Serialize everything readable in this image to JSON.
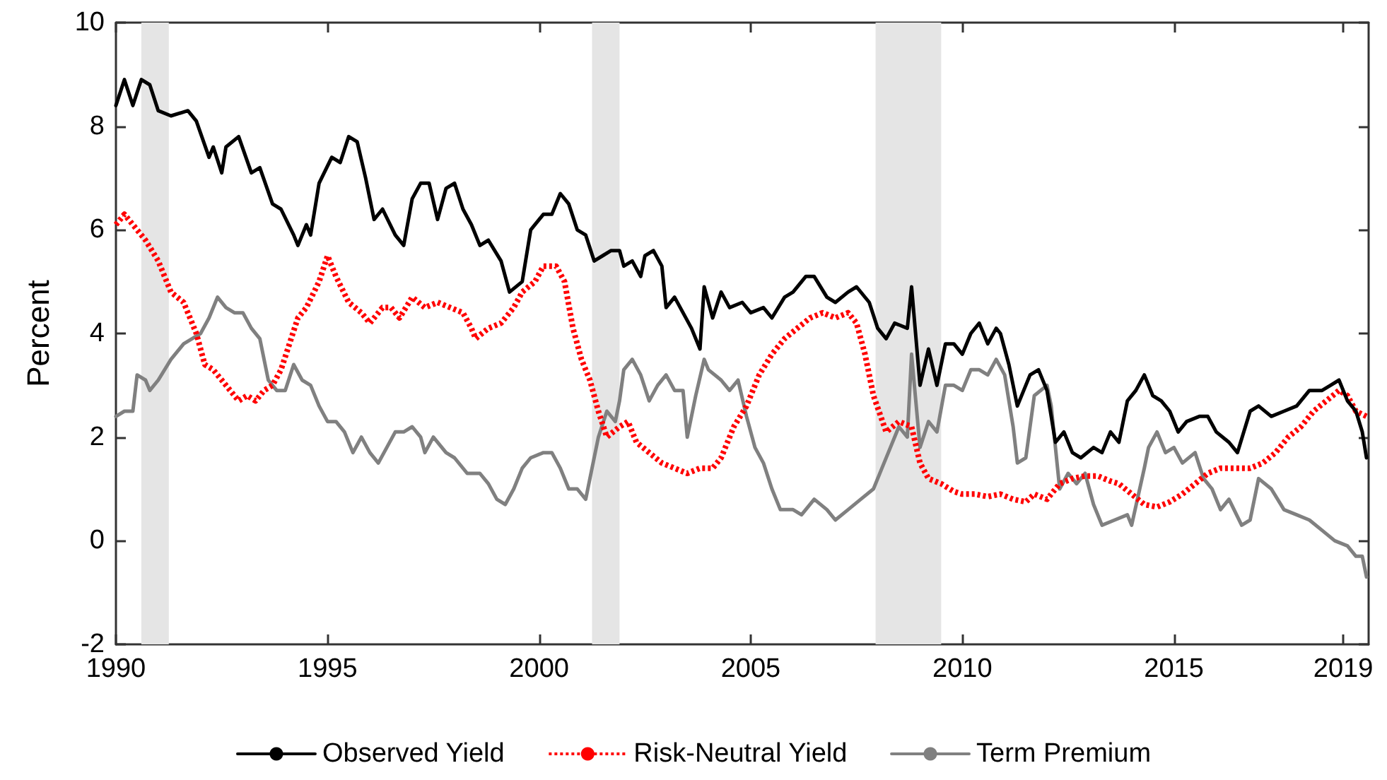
{
  "chart_data": {
    "type": "line",
    "ylabel": "Percent",
    "xlim": [
      1990,
      2019.6
    ],
    "xticks": [
      1990,
      1995,
      2000,
      2005,
      2010,
      2015,
      2019
    ],
    "ylim": [
      -2,
      10
    ],
    "yticks": [
      -2,
      0,
      2,
      4,
      6,
      8,
      10
    ],
    "grid": false,
    "legend": "bottom",
    "marker": "none",
    "bands": [
      {
        "axis": "x",
        "from": 1990.6,
        "to": 1991.25,
        "color": "#e5e5e5"
      },
      {
        "axis": "x",
        "from": 2001.25,
        "to": 2001.9,
        "color": "#e5e5e5"
      },
      {
        "axis": "x",
        "from": 2007.95,
        "to": 2009.5,
        "color": "#e5e5e5"
      }
    ],
    "series": [
      {
        "name": "Observed Yield",
        "color": "#000000",
        "line_style": "solid",
        "x": [
          1990.0,
          1990.2,
          1990.4,
          1990.6,
          1990.8,
          1991.0,
          1991.3,
          1991.7,
          1991.9,
          1992.2,
          1992.3,
          1992.5,
          1992.6,
          1992.9,
          1993.2,
          1993.4,
          1993.7,
          1993.9,
          1994.2,
          1994.3,
          1994.5,
          1994.6,
          1994.8,
          1995.1,
          1995.3,
          1995.5,
          1995.7,
          1995.9,
          1996.1,
          1996.3,
          1996.6,
          1996.8,
          1997.0,
          1997.2,
          1997.4,
          1997.6,
          1997.8,
          1998.0,
          1998.2,
          1998.4,
          1998.6,
          1998.8,
          1999.1,
          1999.3,
          1999.6,
          1999.8,
          2000.1,
          2000.3,
          2000.5,
          2000.7,
          2000.9,
          2001.1,
          2001.3,
          2001.5,
          2001.7,
          2001.9,
          2002.0,
          2002.2,
          2002.4,
          2002.5,
          2002.7,
          2002.9,
          2003.0,
          2003.2,
          2003.4,
          2003.6,
          2003.8,
          2003.9,
          2004.1,
          2004.3,
          2004.5,
          2004.8,
          2005.0,
          2005.3,
          2005.5,
          2005.8,
          2006.0,
          2006.3,
          2006.5,
          2006.8,
          2007.0,
          2007.3,
          2007.5,
          2007.8,
          2008.0,
          2008.2,
          2008.4,
          2008.7,
          2008.8,
          2009.0,
          2009.2,
          2009.4,
          2009.6,
          2009.8,
          2010.0,
          2010.2,
          2010.4,
          2010.6,
          2010.8,
          2010.9,
          2011.1,
          2011.3,
          2011.6,
          2011.8,
          2012.0,
          2012.2,
          2012.4,
          2012.6,
          2012.8,
          2013.1,
          2013.3,
          2013.5,
          2013.7,
          2013.9,
          2014.1,
          2014.3,
          2014.5,
          2014.7,
          2014.9,
          2015.1,
          2015.3,
          2015.6,
          2015.8,
          2016.0,
          2016.3,
          2016.5,
          2016.8,
          2017.0,
          2017.3,
          2017.6,
          2017.9,
          2018.2,
          2018.5,
          2018.7,
          2018.9,
          2019.1,
          2019.3,
          2019.45,
          2019.55
        ],
        "values": [
          8.4,
          8.9,
          8.4,
          8.9,
          8.8,
          8.3,
          8.2,
          8.3,
          8.1,
          7.4,
          7.6,
          7.1,
          7.6,
          7.8,
          7.1,
          7.2,
          6.5,
          6.4,
          5.9,
          5.7,
          6.1,
          5.9,
          6.9,
          7.4,
          7.3,
          7.8,
          7.7,
          7.0,
          6.2,
          6.4,
          5.9,
          5.7,
          6.6,
          6.9,
          6.9,
          6.2,
          6.8,
          6.9,
          6.4,
          6.1,
          5.7,
          5.8,
          5.4,
          4.8,
          5.0,
          6.0,
          6.3,
          6.3,
          6.7,
          6.5,
          6.0,
          5.9,
          5.4,
          5.5,
          5.6,
          5.6,
          5.3,
          5.4,
          5.1,
          5.5,
          5.6,
          5.3,
          4.5,
          4.7,
          4.4,
          4.1,
          3.7,
          4.9,
          4.3,
          4.8,
          4.5,
          4.6,
          4.4,
          4.5,
          4.3,
          4.7,
          4.8,
          5.1,
          5.1,
          4.7,
          4.6,
          4.8,
          4.9,
          4.6,
          4.1,
          3.9,
          4.2,
          4.1,
          4.9,
          3.0,
          3.7,
          3.0,
          3.8,
          3.8,
          3.6,
          4.0,
          4.2,
          3.8,
          4.1,
          4.0,
          3.4,
          2.6,
          3.2,
          3.3,
          2.9,
          1.9,
          2.1,
          1.7,
          1.6,
          1.8,
          1.7,
          2.1,
          1.9,
          2.7,
          2.9,
          3.2,
          2.8,
          2.7,
          2.5,
          2.1,
          2.3,
          2.4,
          2.4,
          2.1,
          1.9,
          1.7,
          2.5,
          2.6,
          2.4,
          2.5,
          2.6,
          2.9,
          2.9,
          3.0,
          3.1,
          2.7,
          2.5,
          2.1,
          1.6
        ]
      },
      {
        "name": "Risk-Neutral Yield",
        "color": "#ff0000",
        "line_style": "dotted",
        "x": [
          1990.0,
          1990.2,
          1990.4,
          1990.7,
          1991.0,
          1991.3,
          1991.6,
          1991.9,
          1992.1,
          1992.3,
          1992.6,
          1992.9,
          1993.1,
          1993.3,
          1993.5,
          1993.7,
          1993.9,
          1994.1,
          1994.3,
          1994.5,
          1994.8,
          1995.0,
          1995.2,
          1995.5,
          1995.8,
          1996.0,
          1996.3,
          1996.5,
          1996.7,
          1997.0,
          1997.3,
          1997.6,
          1997.9,
          1998.2,
          1998.4,
          1998.5,
          1998.8,
          1999.1,
          1999.4,
          1999.6,
          1999.9,
          2000.1,
          2000.4,
          2000.6,
          2000.8,
          2001.0,
          2001.2,
          2001.4,
          2001.6,
          2001.9,
          2002.1,
          2002.3,
          2002.6,
          2002.9,
          2003.2,
          2003.5,
          2003.8,
          2004.1,
          2004.3,
          2004.6,
          2004.9,
          2005.2,
          2005.5,
          2005.8,
          2006.1,
          2006.4,
          2006.7,
          2007.0,
          2007.3,
          2007.5,
          2007.7,
          2007.9,
          2008.2,
          2008.5,
          2008.8,
          2009.0,
          2009.2,
          2009.5,
          2009.8,
          2010.0,
          2010.3,
          2010.6,
          2010.9,
          2011.2,
          2011.5,
          2011.7,
          2012.0,
          2012.3,
          2012.6,
          2012.9,
          2013.2,
          2013.5,
          2013.7,
          2014.0,
          2014.3,
          2014.6,
          2014.9,
          2015.2,
          2015.5,
          2015.8,
          2016.1,
          2016.4,
          2016.8,
          2017.1,
          2017.4,
          2017.7,
          2018.0,
          2018.3,
          2018.6,
          2018.9,
          2019.1,
          2019.3,
          2019.55
        ],
        "values": [
          6.1,
          6.3,
          6.1,
          5.8,
          5.4,
          4.8,
          4.6,
          4.0,
          3.4,
          3.3,
          3.0,
          2.7,
          2.8,
          2.7,
          2.9,
          3.0,
          3.3,
          3.8,
          4.3,
          4.5,
          5.0,
          5.5,
          5.1,
          4.6,
          4.4,
          4.2,
          4.5,
          4.5,
          4.3,
          4.7,
          4.5,
          4.6,
          4.5,
          4.4,
          4.1,
          3.9,
          4.1,
          4.2,
          4.5,
          4.8,
          5.0,
          5.3,
          5.3,
          5.0,
          4.1,
          3.5,
          3.1,
          2.5,
          2.0,
          2.2,
          2.3,
          1.9,
          1.7,
          1.5,
          1.4,
          1.3,
          1.4,
          1.4,
          1.6,
          2.2,
          2.6,
          3.2,
          3.6,
          3.9,
          4.1,
          4.3,
          4.4,
          4.3,
          4.4,
          4.2,
          3.6,
          2.8,
          2.1,
          2.3,
          2.2,
          1.5,
          1.2,
          1.1,
          0.95,
          0.9,
          0.9,
          0.85,
          0.9,
          0.8,
          0.75,
          0.9,
          0.8,
          1.1,
          1.2,
          1.25,
          1.25,
          1.15,
          1.1,
          0.9,
          0.7,
          0.65,
          0.75,
          0.9,
          1.1,
          1.3,
          1.4,
          1.4,
          1.4,
          1.5,
          1.7,
          2.0,
          2.2,
          2.5,
          2.7,
          2.9,
          2.8,
          2.5,
          2.4
        ]
      },
      {
        "name": "Term Premium",
        "color": "#808080",
        "line_style": "solid",
        "x": [
          1990.0,
          1990.2,
          1990.4,
          1990.5,
          1990.7,
          1990.8,
          1991.0,
          1991.3,
          1991.6,
          1991.8,
          1992.0,
          1992.2,
          1992.4,
          1992.6,
          1992.8,
          1993.0,
          1993.2,
          1993.4,
          1993.6,
          1993.8,
          1994.0,
          1994.2,
          1994.4,
          1994.6,
          1994.8,
          1995.0,
          1995.2,
          1995.4,
          1995.6,
          1995.8,
          1996.0,
          1996.2,
          1996.4,
          1996.6,
          1996.8,
          1997.0,
          1997.2,
          1997.3,
          1997.5,
          1997.8,
          1998.0,
          1998.3,
          1998.6,
          1998.8,
          1999.0,
          1999.2,
          1999.4,
          1999.6,
          1999.8,
          2000.1,
          2000.3,
          2000.5,
          2000.7,
          2000.9,
          2001.1,
          2001.2,
          2001.4,
          2001.6,
          2001.8,
          2001.9,
          2002.0,
          2002.2,
          2002.4,
          2002.6,
          2002.8,
          2003.0,
          2003.2,
          2003.4,
          2003.5,
          2003.7,
          2003.9,
          2004.0,
          2004.3,
          2004.5,
          2004.7,
          2004.9,
          2005.1,
          2005.3,
          2005.5,
          2005.7,
          2006.0,
          2006.2,
          2006.5,
          2006.8,
          2007.0,
          2007.3,
          2007.6,
          2007.9,
          2008.1,
          2008.3,
          2008.5,
          2008.7,
          2008.8,
          2009.0,
          2009.2,
          2009.4,
          2009.6,
          2009.8,
          2010.0,
          2010.2,
          2010.4,
          2010.6,
          2010.8,
          2011.0,
          2011.2,
          2011.3,
          2011.5,
          2011.7,
          2012.0,
          2012.1,
          2012.3,
          2012.5,
          2012.7,
          2012.9,
          2013.1,
          2013.3,
          2013.6,
          2013.9,
          2014.0,
          2014.3,
          2014.4,
          2014.6,
          2014.8,
          2015.0,
          2015.2,
          2015.5,
          2015.7,
          2015.9,
          2016.1,
          2016.3,
          2016.6,
          2016.8,
          2017.0,
          2017.3,
          2017.6,
          2017.9,
          2018.2,
          2018.5,
          2018.8,
          2019.1,
          2019.3,
          2019.45,
          2019.55
        ],
        "values": [
          2.4,
          2.5,
          2.5,
          3.2,
          3.1,
          2.9,
          3.1,
          3.5,
          3.8,
          3.9,
          4.0,
          4.3,
          4.7,
          4.5,
          4.4,
          4.4,
          4.1,
          3.9,
          3.1,
          2.9,
          2.9,
          3.4,
          3.1,
          3.0,
          2.6,
          2.3,
          2.3,
          2.1,
          1.7,
          2.0,
          1.7,
          1.5,
          1.8,
          2.1,
          2.1,
          2.2,
          2.0,
          1.7,
          2.0,
          1.7,
          1.6,
          1.3,
          1.3,
          1.1,
          0.8,
          0.7,
          1.0,
          1.4,
          1.6,
          1.7,
          1.7,
          1.4,
          1.0,
          1.0,
          0.8,
          1.2,
          2.0,
          2.5,
          2.3,
          2.7,
          3.3,
          3.5,
          3.2,
          2.7,
          3.0,
          3.2,
          2.9,
          2.9,
          2.0,
          2.8,
          3.5,
          3.3,
          3.1,
          2.9,
          3.1,
          2.4,
          1.8,
          1.5,
          1.0,
          0.6,
          0.6,
          0.5,
          0.8,
          0.6,
          0.4,
          0.6,
          0.8,
          1.0,
          1.4,
          1.8,
          2.2,
          2.0,
          3.6,
          1.8,
          2.3,
          2.1,
          3.0,
          3.0,
          2.9,
          3.3,
          3.3,
          3.2,
          3.5,
          3.2,
          2.2,
          1.5,
          1.6,
          2.8,
          3.0,
          2.6,
          1.0,
          1.3,
          1.1,
          1.3,
          0.7,
          0.3,
          0.4,
          0.5,
          0.3,
          1.4,
          1.8,
          2.1,
          1.7,
          1.8,
          1.5,
          1.7,
          1.2,
          1.0,
          0.6,
          0.8,
          0.3,
          0.4,
          1.2,
          1.0,
          0.6,
          0.5,
          0.4,
          0.2,
          0.0,
          -0.1,
          -0.3,
          -0.3,
          -0.7
        ]
      }
    ]
  }
}
